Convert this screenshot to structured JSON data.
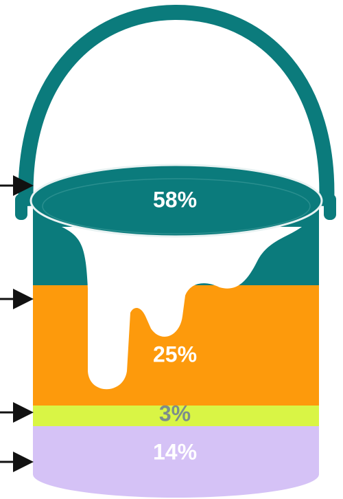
{
  "chart_data": {
    "type": "bucket",
    "values": [
      58,
      25,
      3,
      14
    ],
    "value_labels": [
      "58%",
      "25%",
      "3%",
      "14%"
    ],
    "colors": [
      "#0b7b7c",
      "#fd9a0c",
      "#d9f545",
      "#d5c2f6"
    ],
    "label_colors": [
      "#ffffff",
      "#ffffff",
      "#7d8d8c",
      "#ffffff"
    ]
  }
}
